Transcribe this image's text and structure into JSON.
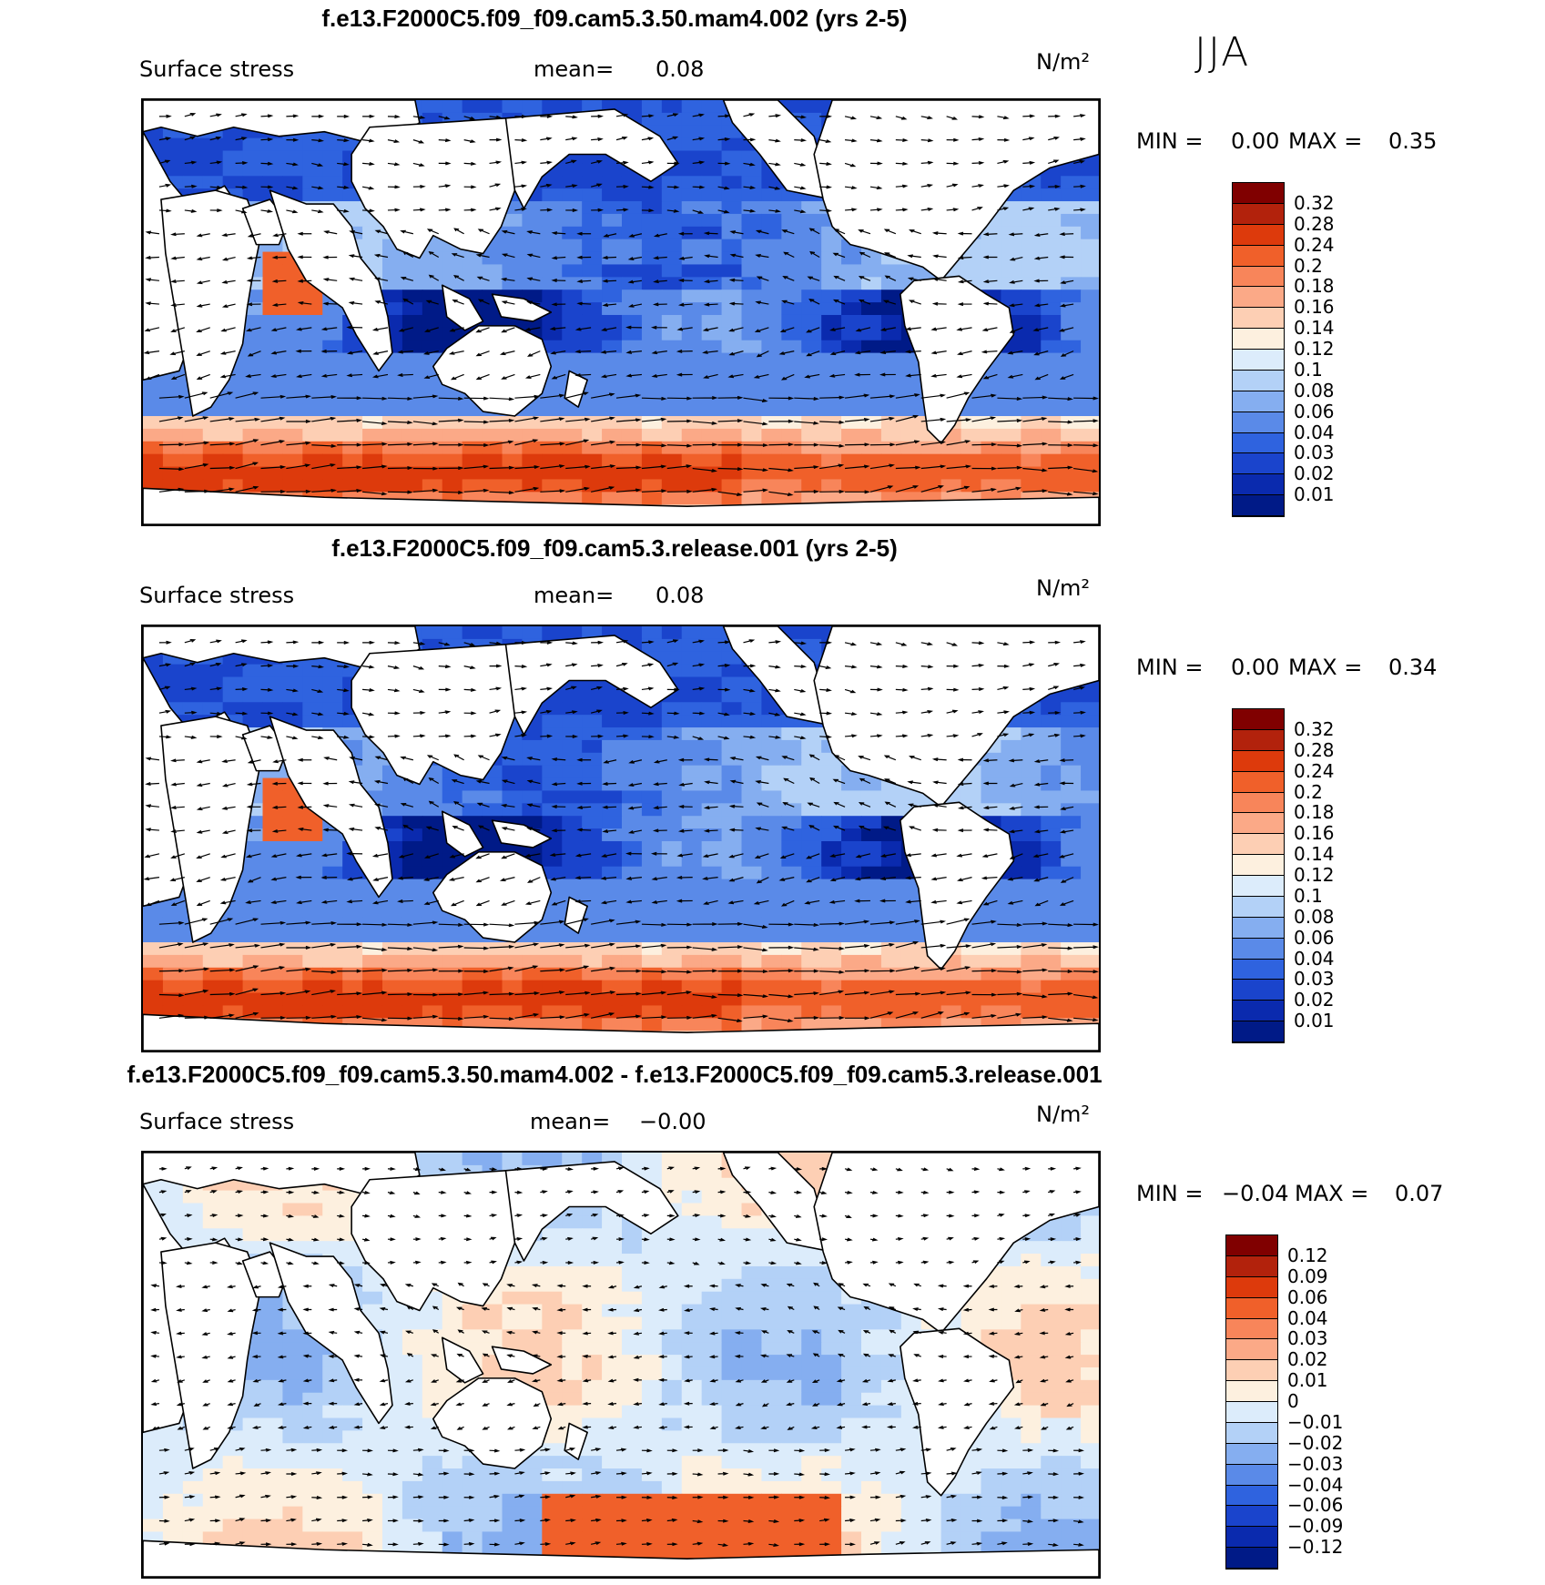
{
  "season": "JJA",
  "panels": [
    {
      "title": "f.e13.F2000C5.f09_f09.cam5.3.50.mam4.002 (yrs 2-5)",
      "variable": "Surface stress",
      "mean_label": "mean=",
      "mean_value": "0.08",
      "units": "N/m²",
      "min_label": "MIN =",
      "min_value": "0.00",
      "max_label": "MAX =",
      "max_value": "0.35",
      "field_type": "absolute"
    },
    {
      "title": "f.e13.F2000C5.f09_f09.cam5.3.release.001 (yrs 2-5)",
      "variable": "Surface stress",
      "mean_label": "mean=",
      "mean_value": "0.08",
      "units": "N/m²",
      "min_label": "MIN =",
      "min_value": "0.00",
      "max_label": "MAX =",
      "max_value": "0.34",
      "field_type": "absolute"
    },
    {
      "title": "f.e13.F2000C5.f09_f09.cam5.3.50.mam4.002 - f.e13.F2000C5.f09_f09.cam5.3.release.001",
      "variable": "Surface stress",
      "mean_label": "mean=",
      "mean_value": "−0.00",
      "units": "N/m²",
      "min_label": "MIN =",
      "min_value": "−0.04",
      "max_label": "MAX =",
      "max_value": "0.07",
      "field_type": "difference"
    }
  ],
  "colorbars": {
    "absolute": {
      "labels": [
        "0.32",
        "0.28",
        "0.24",
        "0.2",
        "0.18",
        "0.16",
        "0.14",
        "0.12",
        "0.1",
        "0.08",
        "0.06",
        "0.04",
        "0.03",
        "0.02",
        "0.01"
      ],
      "colors": [
        "#800000",
        "#b2220c",
        "#dd3a0c",
        "#f0602a",
        "#f8855a",
        "#fba987",
        "#fdcfb4",
        "#fdf0df",
        "#dcecfb",
        "#b3d1f7",
        "#85aef0",
        "#5a8ae8",
        "#2f63df",
        "#1a44cc",
        "#0a2aae",
        "#001a87"
      ]
    },
    "difference": {
      "labels": [
        "0.12",
        "0.09",
        "0.06",
        "0.04",
        "0.03",
        "0.02",
        "0.01",
        "0",
        "−0.01",
        "−0.02",
        "−0.03",
        "−0.04",
        "−0.06",
        "−0.09",
        "−0.12"
      ],
      "colors": [
        "#800000",
        "#b2220c",
        "#dd3a0c",
        "#f0602a",
        "#f8855a",
        "#fba987",
        "#fdcfb4",
        "#fdf0df",
        "#dcecfb",
        "#b3d1f7",
        "#85aef0",
        "#5a8ae8",
        "#2f63df",
        "#1a44cc",
        "#0a2aae",
        "#001a87"
      ]
    }
  }
}
